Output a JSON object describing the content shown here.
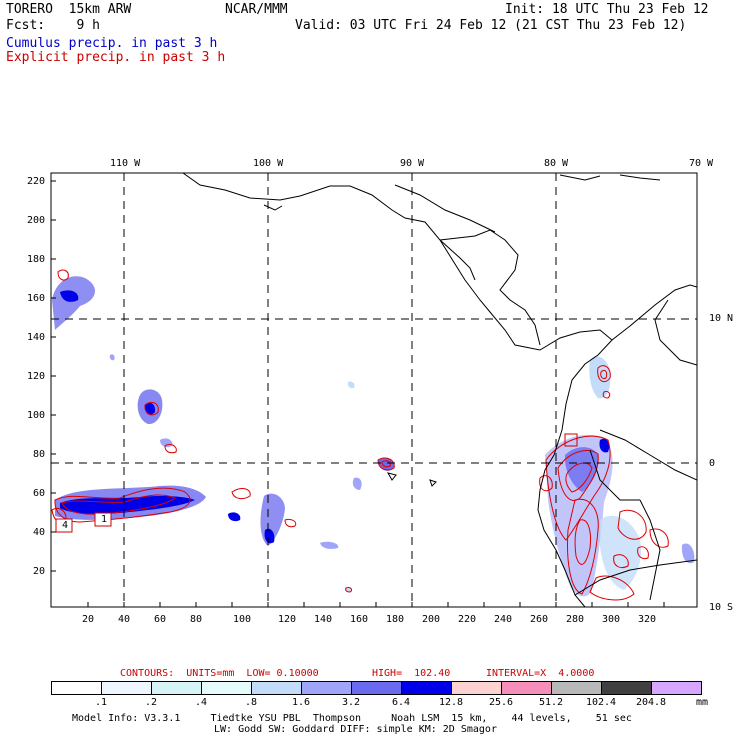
{
  "header": {
    "model": "TORERO  15km ARW",
    "org": "NCAR/MMM",
    "init": "Init: 18 UTC Thu 23 Feb 12",
    "fcst": "Fcst:    9 h",
    "valid": "Valid: 03 UTC Fri 24 Feb 12 (21 CST Thu 23 Feb 12)",
    "field1": "Cumulus precip. in past 3 h",
    "field2": "Explicit precip. in past 3 h"
  },
  "axes": {
    "lon_top": [
      "110 W",
      "100 W",
      "90 W",
      "80 W",
      "70 W"
    ],
    "lat_right": [
      "10 N",
      "0",
      "10 S"
    ],
    "y_left": [
      "220",
      "200",
      "180",
      "160",
      "140",
      "120",
      "100",
      "80",
      "60",
      "40",
      "20"
    ],
    "x_bottom": [
      "20",
      "40",
      "60",
      "80",
      "100",
      "120",
      "140",
      "160",
      "180",
      "200",
      "220",
      "240",
      "260",
      "280",
      "300",
      "320"
    ]
  },
  "contours_info": {
    "units": "CONTOURS:  UNITS=mm  LOW= 0.10000",
    "high": "HIGH=  102.40",
    "interval": "INTERVAL=X  4.0000"
  },
  "colorbar": {
    "labels": [
      ".1",
      ".2",
      ".4",
      ".8",
      "1.6",
      "3.2",
      "6.4",
      "12.8",
      "25.6",
      "51.2",
      "102.4",
      "204.8"
    ],
    "unit": "mm",
    "colors": [
      "#ffffff",
      "#eef6ff",
      "#d6f3f6",
      "#e6fcfc",
      "#c3dcfa",
      "#9fa6f7",
      "#6a6aef",
      "#0000e8",
      "#ffd2d2",
      "#f58eb8",
      "#b8b8b8",
      "#404040",
      "#d7a6ff"
    ]
  },
  "footer": {
    "line1": "Model Info: V3.3.1     Tiedtke YSU PBL  Thompson     Noah LSM  15 km,    44 levels,    51 sec",
    "line2": "LW: Godd SW: Goddard DIFF: simple KM: 2D Smagor"
  },
  "map_labels": {
    "box1": "4",
    "box2": "1"
  }
}
